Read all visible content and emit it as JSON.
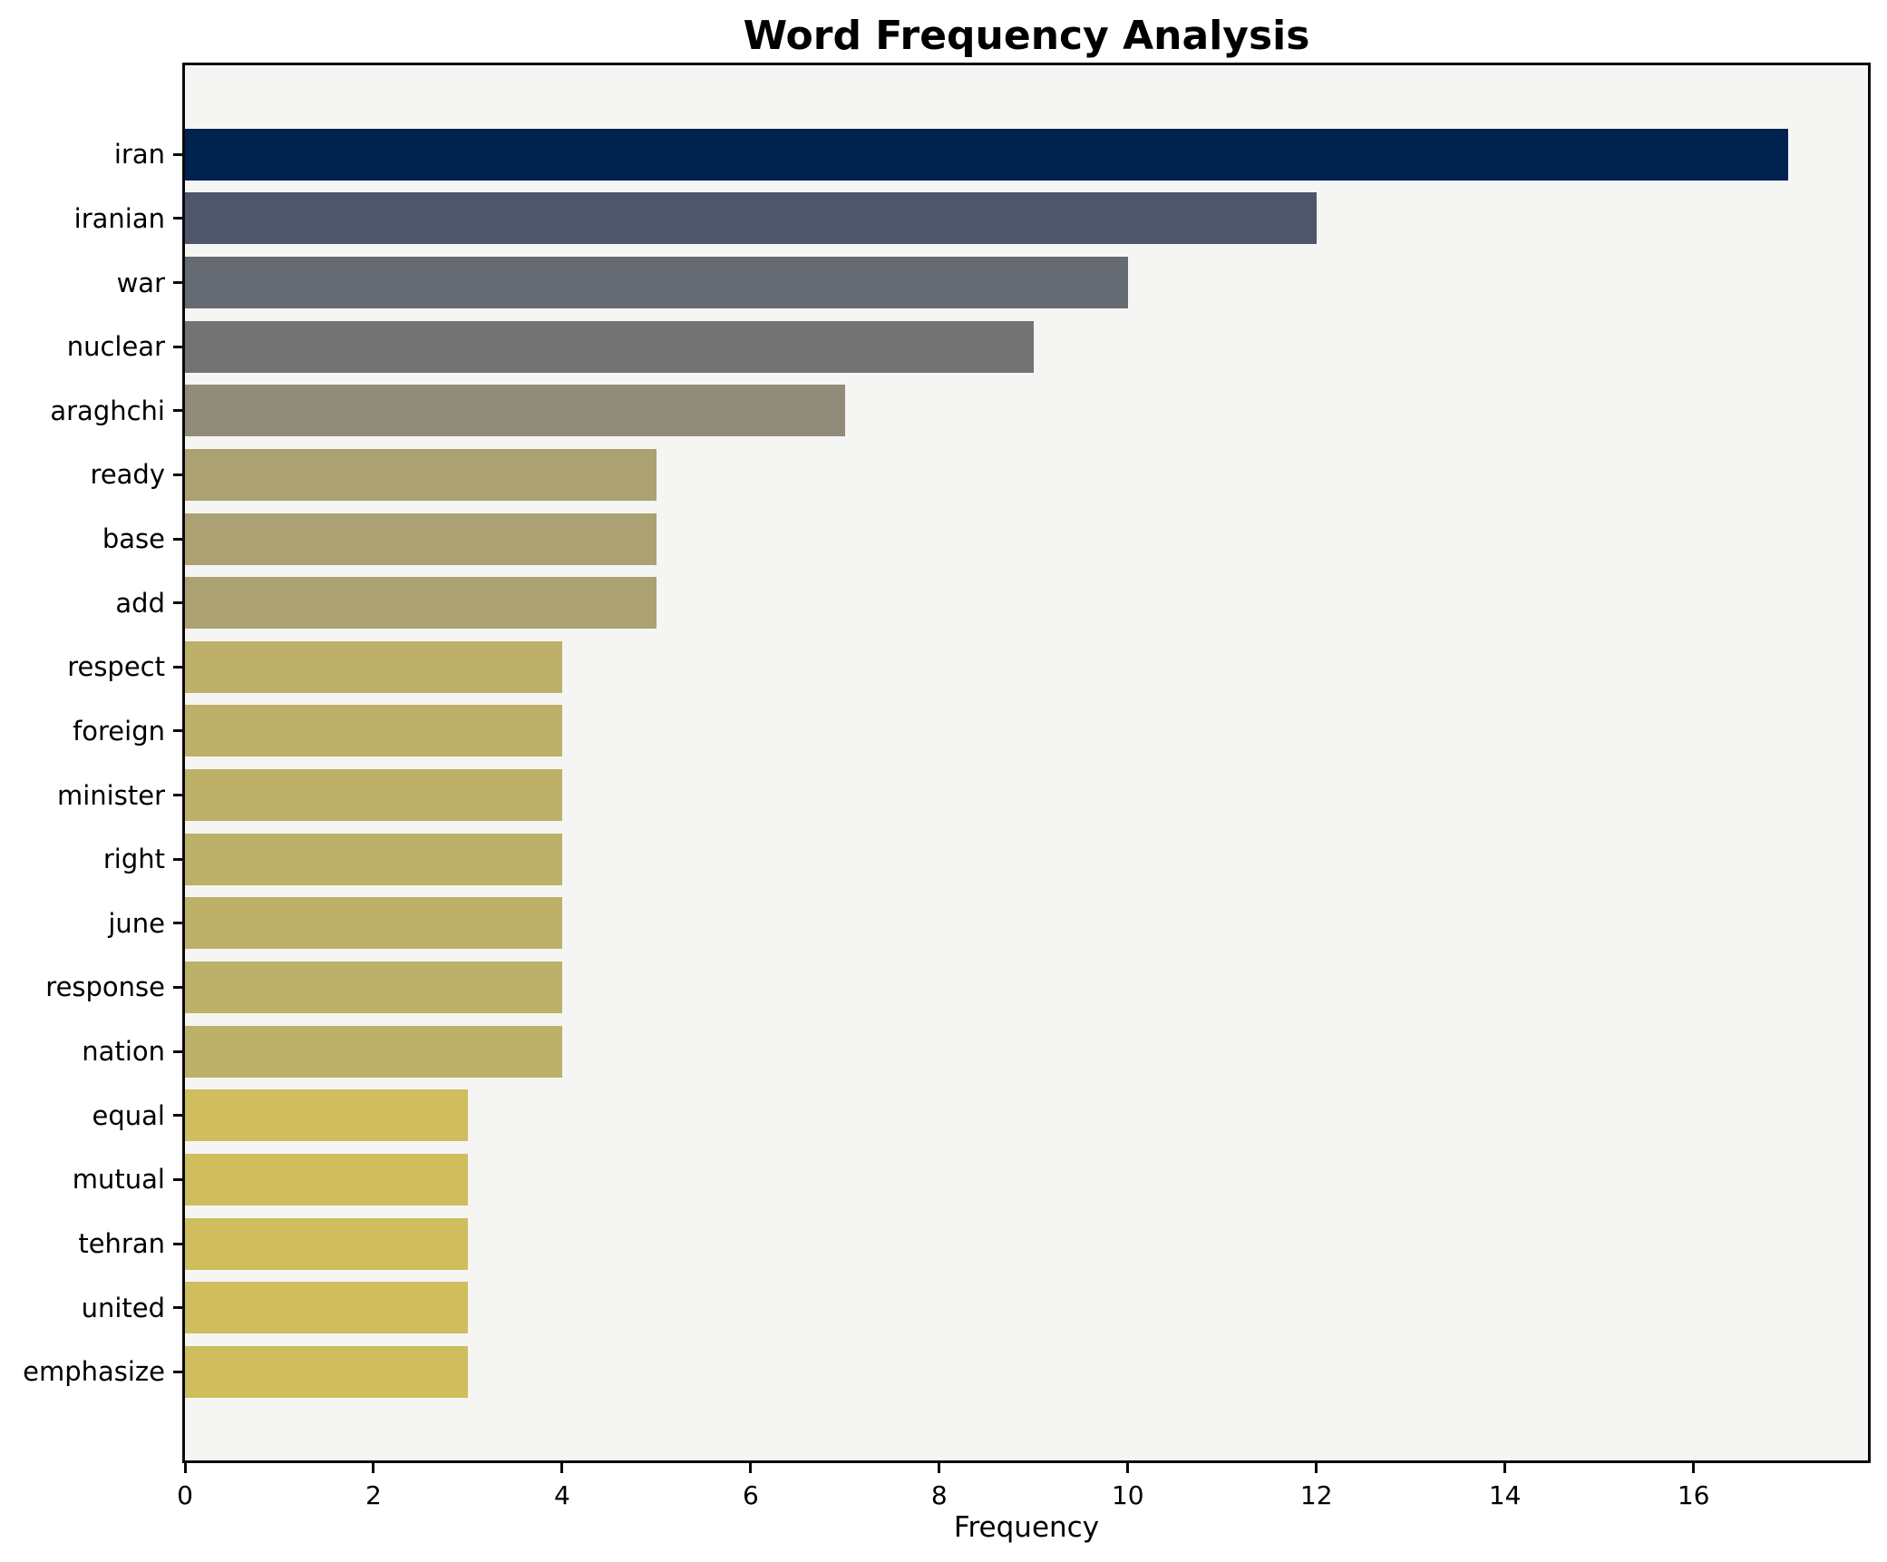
{
  "title": "Word Frequency Analysis",
  "chart_data": {
    "type": "bar",
    "orientation": "horizontal",
    "title": "Word Frequency Analysis",
    "xlabel": "Frequency",
    "ylabel": "",
    "categories": [
      "iran",
      "iranian",
      "war",
      "nuclear",
      "araghchi",
      "ready",
      "base",
      "add",
      "respect",
      "foreign",
      "minister",
      "right",
      "june",
      "response",
      "nation",
      "equal",
      "mutual",
      "tehran",
      "united",
      "emphasize"
    ],
    "values": [
      17,
      12,
      10,
      9,
      7,
      5,
      5,
      5,
      4,
      4,
      4,
      4,
      4,
      4,
      4,
      3,
      3,
      3,
      3,
      3
    ],
    "bar_colors": [
      "#00224e",
      "#4d566a",
      "#666a72",
      "#737374",
      "#918b79",
      "#aba172",
      "#aba172",
      "#aba172",
      "#bdb068",
      "#bdb068",
      "#bdb068",
      "#bdb068",
      "#bdb068",
      "#bdb068",
      "#bdb068",
      "#cfbd5e",
      "#cfbd5e",
      "#cfbd5e",
      "#cfbd5e",
      "#cfbd5e"
    ],
    "x_ticks": [
      0,
      2,
      4,
      6,
      8,
      10,
      12,
      14,
      16
    ],
    "xlim": [
      0,
      17.85
    ],
    "grid": false,
    "legend": false,
    "plot_background": "#f5f5f4",
    "figure_background": "#ffffff",
    "spine_color": "#0a0a0a",
    "text_color": "#000000"
  }
}
